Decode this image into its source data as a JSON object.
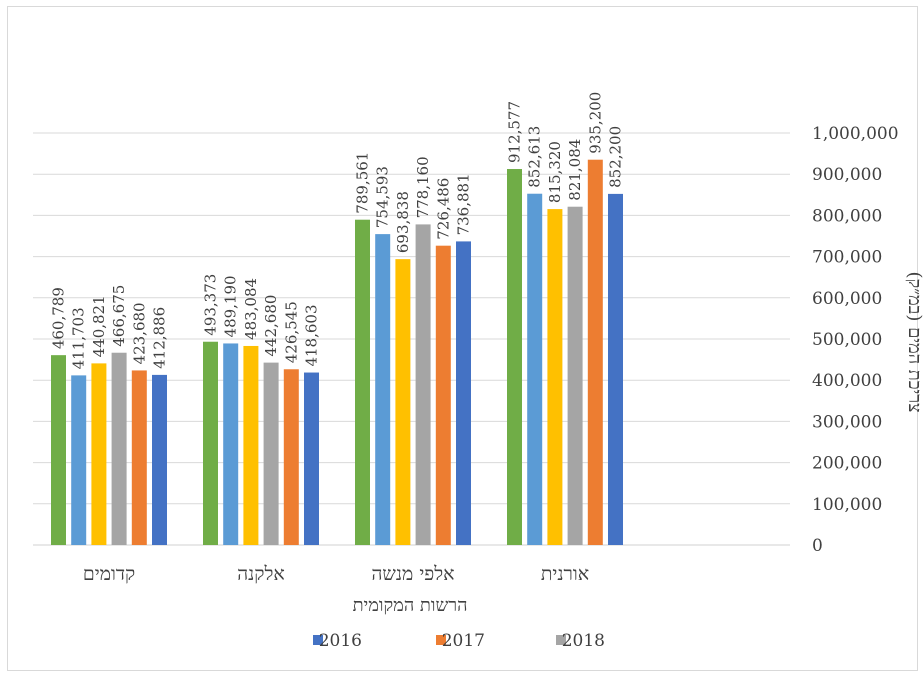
{
  "chart_data": {
    "type": "bar",
    "categories": [
      "קדומים",
      "אלקנה",
      "אלפי מנשה",
      "אורנית"
    ],
    "series": [
      {
        "values": [
          460789,
          493373,
          789561,
          912577
        ],
        "color": "#70ad47"
      },
      {
        "values": [
          411703,
          489190,
          754593,
          852613
        ],
        "color": "#5b9bd5"
      },
      {
        "values": [
          440821,
          483084,
          693838,
          815320
        ],
        "color": "#ffc000"
      },
      {
        "name": "2018",
        "values": [
          466675,
          442680,
          778160,
          821084
        ],
        "color": "#a5a5a5"
      },
      {
        "name": "2017",
        "values": [
          423680,
          426545,
          726486,
          935200
        ],
        "color": "#ed7d31"
      },
      {
        "name": "2016",
        "values": [
          412886,
          418603,
          736881,
          852200
        ],
        "color": "#4472c4"
      }
    ],
    "data_labels": [
      [
        "460,789",
        "411,703",
        "440,821",
        "466,675",
        "423,680",
        "412,886"
      ],
      [
        "493,373",
        "489,190",
        "483,084",
        "442,680",
        "426,545",
        "418,603"
      ],
      [
        "789,561",
        "754,593",
        "693,838",
        "778,160",
        "726,486",
        "736,881"
      ],
      [
        "912,577",
        "852,613",
        "815,320",
        "821,084",
        "935,200",
        "852,200"
      ]
    ],
    "y_ticks": [
      "0",
      "100,000",
      "200,000",
      "300,000",
      "400,000",
      "500,000",
      "600,000",
      "700,000",
      "800,000",
      "900,000",
      "1,000,000"
    ],
    "xlabel": "הרשות המקומית",
    "ylabel": "צריכת המים (במ״ק)",
    "ylim": [
      0,
      1000000
    ],
    "grid": true,
    "y_axis_side": "right",
    "legend_position": "bottom",
    "legend": [
      "2016",
      "2017",
      "2018"
    ]
  }
}
